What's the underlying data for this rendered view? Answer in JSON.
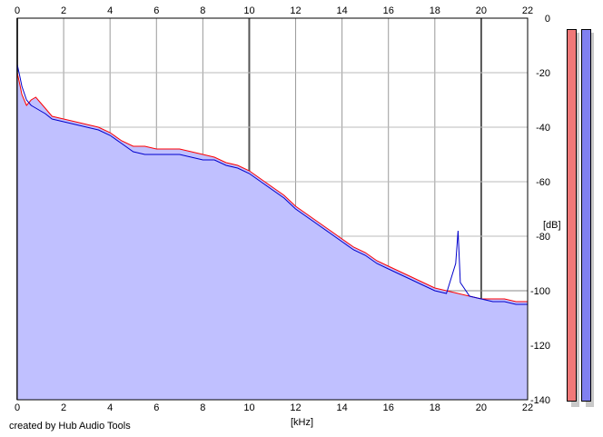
{
  "chart_data": {
    "type": "area",
    "xlabel": "[kHz]",
    "ylabel": "[dB]",
    "xlim": [
      0,
      22
    ],
    "ylim": [
      -140,
      0
    ],
    "x_ticks": [
      0,
      2,
      4,
      6,
      8,
      10,
      12,
      14,
      16,
      18,
      20,
      22
    ],
    "y_ticks": [
      0,
      -20,
      -40,
      -60,
      -80,
      -100,
      -120,
      -140
    ],
    "grid": true,
    "series": [
      {
        "color": "#ff0000",
        "x": [
          0,
          0.1,
          0.2,
          0.4,
          0.6,
          0.8,
          1.0,
          1.2,
          1.5,
          2.0,
          2.5,
          3.0,
          3.5,
          4.0,
          4.5,
          5.0,
          5.5,
          6.0,
          6.5,
          7.0,
          7.5,
          8.0,
          8.5,
          9.0,
          9.5,
          10.0,
          10.5,
          11.0,
          11.5,
          12.0,
          12.5,
          13.0,
          13.5,
          14.0,
          14.5,
          15.0,
          15.5,
          16.0,
          16.5,
          17.0,
          17.5,
          18.0,
          18.5,
          19.0,
          19.5,
          20.0,
          20.5,
          21.0,
          21.5,
          22.0
        ],
        "values": [
          -20,
          -24,
          -28,
          -32,
          -30,
          -29,
          -31,
          -33,
          -36,
          -37,
          -38,
          -39,
          -40,
          -42,
          -45,
          -47,
          -47,
          -48,
          -48,
          -48,
          -49,
          -50,
          -51,
          -53,
          -54,
          -56,
          -59,
          -62,
          -65,
          -69,
          -72,
          -75,
          -78,
          -81,
          -84,
          -86,
          -89,
          -91,
          -93,
          -95,
          -97,
          -99,
          -100,
          -101,
          -102,
          -103,
          -103,
          -103,
          -104,
          -104
        ]
      },
      {
        "color": "#0000cc",
        "x": [
          0,
          0.1,
          0.2,
          0.4,
          0.6,
          0.8,
          1.0,
          1.2,
          1.5,
          2.0,
          2.5,
          3.0,
          3.5,
          4.0,
          4.5,
          5.0,
          5.5,
          6.0,
          6.5,
          7.0,
          7.5,
          8.0,
          8.5,
          9.0,
          9.5,
          10.0,
          10.5,
          11.0,
          11.5,
          12.0,
          12.5,
          13.0,
          13.5,
          14.0,
          14.5,
          15.0,
          15.5,
          16.0,
          16.5,
          17.0,
          17.5,
          18.0,
          18.5,
          18.9,
          19.0,
          19.1,
          19.5,
          20.0,
          20.5,
          21.0,
          21.5,
          22.0
        ],
        "values": [
          -17,
          -21,
          -25,
          -30,
          -32,
          -33,
          -34,
          -35,
          -37,
          -38,
          -39,
          -40,
          -41,
          -43,
          -46,
          -49,
          -50,
          -50,
          -50,
          -50,
          -51,
          -52,
          -52,
          -54,
          -55,
          -57,
          -60,
          -63,
          -66,
          -70,
          -73,
          -76,
          -79,
          -82,
          -85,
          -87,
          -90,
          -92,
          -94,
          -96,
          -98,
          -100,
          -101,
          -90,
          -78,
          -97,
          -102,
          -103,
          -104,
          -104,
          -105,
          -105
        ]
      }
    ],
    "fill_color": "#c0c0ff",
    "meters": [
      {
        "color": "#f07878"
      },
      {
        "color": "#8080f0"
      }
    ]
  },
  "footer": {
    "credit": "created by Hub Audio Tools"
  }
}
